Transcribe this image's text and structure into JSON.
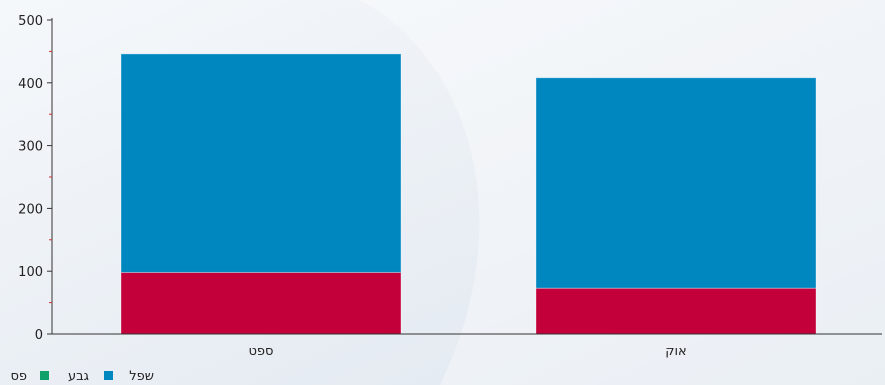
{
  "chart_data": {
    "type": "bar",
    "stacked": true,
    "categories": [
      "ספט",
      "אוק"
    ],
    "series": [
      {
        "name": "פס",
        "values": [
          98,
          73
        ],
        "color": "#c4003a"
      },
      {
        "name": "גבע",
        "values": [
          0,
          0
        ],
        "color": "#10a06a"
      },
      {
        "name": "שפל",
        "values": [
          348,
          335
        ],
        "color": "#0087c0"
      }
    ],
    "ylim": [
      0,
      500
    ],
    "y_ticks": [
      0,
      100,
      200,
      300,
      400,
      500
    ],
    "grid": false,
    "legend_position": "bottom-left"
  },
  "colors": {
    "axis": "#333333",
    "minor_tick": "#d0302f",
    "background": "#eef2f6"
  }
}
